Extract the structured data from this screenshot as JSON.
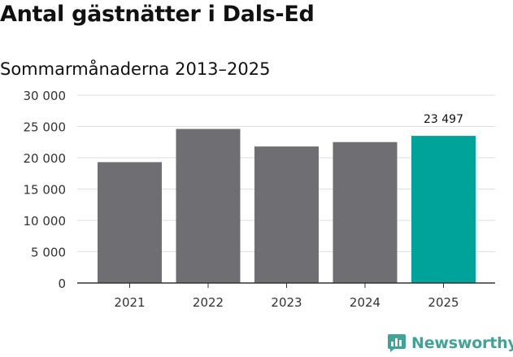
{
  "title": "Antal gästnätter i Dals-Ed",
  "subtitle": "Sommarmånaderna 2013–2025",
  "brand": {
    "name": "Newsworthy",
    "color": "#3fa495"
  },
  "colors": {
    "bar_default": "#6f6e73",
    "bar_highlight": "#00a39a",
    "grid": "#dddddd",
    "axis": "#333333",
    "text": "#333333"
  },
  "chart_data": {
    "type": "bar",
    "title": "Antal gästnätter i Dals-Ed",
    "subtitle": "Sommarmånaderna 2013–2025",
    "xlabel": "",
    "ylabel": "",
    "categories": [
      "2021",
      "2022",
      "2023",
      "2024",
      "2025"
    ],
    "values": [
      19300,
      24600,
      21800,
      22500,
      23497
    ],
    "highlight_index": 4,
    "data_labels": [
      {
        "index": 4,
        "text": "23 497"
      }
    ],
    "ylim": [
      0,
      30000
    ],
    "yticks": [
      0,
      5000,
      10000,
      15000,
      20000,
      25000,
      30000
    ],
    "ytick_labels": [
      "0",
      "5 000",
      "10 000",
      "15 000",
      "20 000",
      "25 000",
      "30 000"
    ],
    "grid": true,
    "legend": "none"
  }
}
